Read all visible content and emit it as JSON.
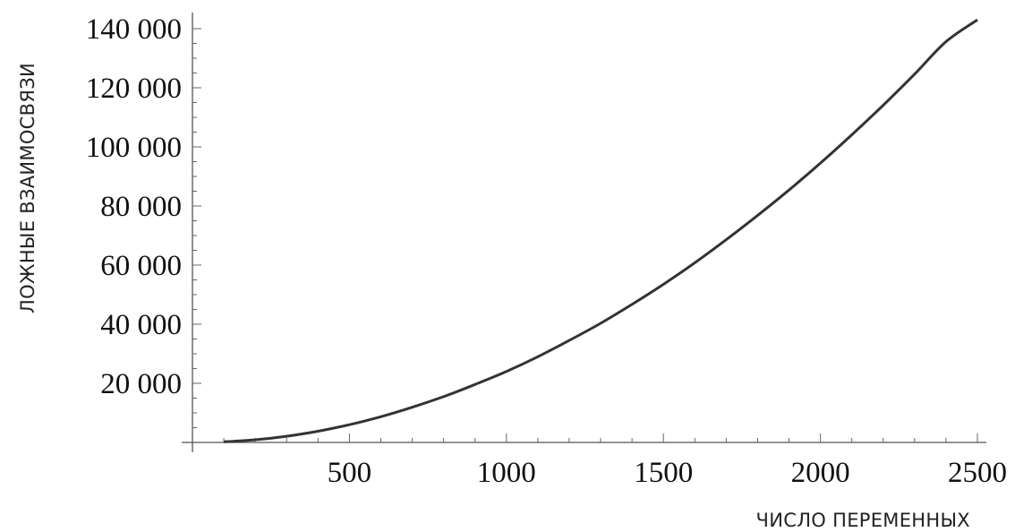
{
  "chart_data": {
    "type": "line",
    "title": "",
    "xlabel": "ЧИСЛО ПЕРЕМЕННЫХ",
    "ylabel": "ЛОЖНЫЕ ВЗАИМОСВЯЗИ",
    "xlim": [
      0,
      2500
    ],
    "ylim": [
      0,
      140000
    ],
    "x_ticks": [
      500,
      1000,
      1500,
      2000,
      2500
    ],
    "x_tick_labels": [
      "500",
      "1000",
      "1500",
      "2000",
      "2500"
    ],
    "y_ticks": [
      20000,
      40000,
      60000,
      80000,
      100000,
      120000,
      140000
    ],
    "y_tick_labels": [
      "20 000",
      "40 000",
      "60 000",
      "80 000",
      "100 000",
      "120 000",
      "140 000"
    ],
    "grid": false,
    "legend": "none",
    "series": [
      {
        "color": "#333333",
        "x": [
          100,
          200,
          300,
          400,
          500,
          600,
          700,
          800,
          900,
          1000,
          1100,
          1200,
          1300,
          1400,
          1500,
          1600,
          1700,
          1800,
          1900,
          2000,
          2100,
          2200,
          2300,
          2400,
          2500
        ],
        "y": [
          200,
          900,
          2100,
          3800,
          6000,
          8700,
          11900,
          15500,
          19600,
          24000,
          29000,
          34500,
          40300,
          46700,
          53500,
          60800,
          68600,
          76800,
          85400,
          94500,
          104100,
          114100,
          124600,
          135600,
          143000
        ]
      }
    ]
  }
}
